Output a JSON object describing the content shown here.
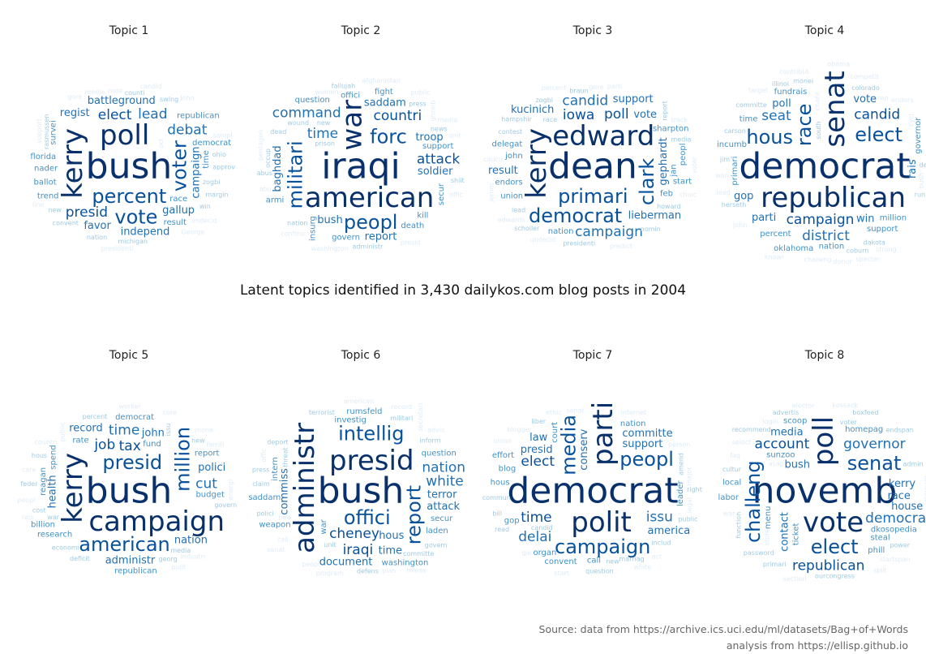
{
  "title": "Latent topics identified in 3,430 dailykos.com blog posts in 2004",
  "source": {
    "line1": "Source: data from https://archive.ics.uci.edu/ml/datasets/Bag+of+Words",
    "line2": "analysis from https://ellisp.github.io"
  },
  "colors": {
    "darkest": "#08306b",
    "dark": "#08519c",
    "medium": "#2171b5",
    "light": "#4292c6",
    "lighter": "#9ecae1",
    "faint": "#deebf7"
  },
  "chart_data": [
    {
      "type": "wordcloud",
      "title": "Topic 1",
      "words": [
        "bush",
        "kerry",
        "poll",
        "voter",
        "percent",
        "vote",
        "elect",
        "presid",
        "debat",
        "lead",
        "campaign",
        "battleground",
        "gallup",
        "independ",
        "regist",
        "favor",
        "florida",
        "time",
        "democrat",
        "race",
        "nader",
        "result",
        "republican",
        "ballot",
        "survei",
        "trend",
        "zogbi",
        "counti",
        "approv",
        "margin",
        "michigan",
        "rasmussen",
        "ohio",
        "win",
        "nation",
        "convent",
        "swing",
        "new",
        "support",
        "note",
        "media",
        "sampl",
        "undecid",
        "candid",
        "line",
        "oct",
        "George",
        "gore",
        "John",
        "presidenti"
      ]
    },
    {
      "type": "wordcloud",
      "title": "Topic 2",
      "words": [
        "iraqi",
        "war",
        "american",
        "militari",
        "forc",
        "peopl",
        "countri",
        "attack",
        "time",
        "command",
        "baghdad",
        "soldier",
        "troop",
        "bush",
        "saddam",
        "report",
        "support",
        "secur",
        "kill",
        "offici",
        "govern",
        "death",
        "question",
        "armi",
        "insurg",
        "fight",
        "prison",
        "new",
        "wound",
        "news",
        "dead",
        "occup",
        "nation",
        "abus",
        "press",
        "shiit",
        "administr",
        "fallujah",
        "ghraib",
        "abu",
        "women",
        "washington",
        "presid",
        "continu",
        "unit",
        "pentagon",
        "afghanistan",
        "offic",
        "media",
        "public"
      ]
    },
    {
      "type": "wordcloud",
      "title": "Topic 3",
      "words": [
        "dean",
        "kerry",
        "edward",
        "clark",
        "primari",
        "democrat",
        "iowa",
        "poll",
        "candid",
        "campaign",
        "gephardt",
        "lieberman",
        "kucinich",
        "support",
        "result",
        "vote",
        "john",
        "jan",
        "feb",
        "sharpton",
        "endors",
        "nation",
        "delegat",
        "union",
        "peopl",
        "start",
        "hampshir",
        "contest",
        "race",
        "howard",
        "lead",
        "report",
        "media",
        "zogbi",
        "braun",
        "nomin",
        "presidenti",
        "schoiler",
        "voter",
        "caucu",
        "choic",
        "gore",
        "parti",
        "predict",
        "track",
        "jerom",
        "undecid",
        "edwards",
        "percent"
      ]
    },
    {
      "type": "wordcloud",
      "title": "Topic 4",
      "words": [
        "democrat",
        "senat",
        "republican",
        "race",
        "elect",
        "hous",
        "campaign",
        "candid",
        "district",
        "seat",
        "rais",
        "win",
        "parti",
        "gop",
        "poll",
        "vote",
        "million",
        "primari",
        "incumb",
        "support",
        "fundrais",
        "percent",
        "nation",
        "time",
        "governor",
        "oklahoma",
        "herseth",
        "committe",
        "colorado",
        "carson",
        "jim",
        "south",
        "dakota",
        "monei",
        "dem",
        "run",
        "coburn",
        "illinoi",
        "chanc",
        "won",
        "challeng",
        "endors",
        "competit",
        "contribut",
        "target",
        "bush",
        "specter",
        "strong",
        "rep",
        "donor",
        "knowl",
        "lead",
        "cycl",
        "John",
        "obama"
      ]
    },
    {
      "type": "wordcloud",
      "title": "Topic 5",
      "words": [
        "bush",
        "kerry",
        "campaign",
        "million",
        "presid",
        "american",
        "tax",
        "job",
        "time",
        "cut",
        "health",
        "polici",
        "john",
        "nation",
        "administr",
        "record",
        "budget",
        "reagan",
        "fund",
        "rate",
        "research",
        "democrat",
        "report",
        "billion",
        "spend",
        "republican",
        "economi",
        "govern",
        "media",
        "war",
        "cost",
        "issu",
        "deficit",
        "georg",
        "feder",
        "percent",
        "new",
        "hous",
        "public",
        "peopl",
        "countri",
        "famili",
        "industri",
        "worker",
        "care",
        "energi",
        "rais",
        "core",
        "mone",
        "polit"
      ]
    },
    {
      "type": "wordcloud",
      "title": "Topic 6",
      "words": [
        "bush",
        "administr",
        "presid",
        "report",
        "intellig",
        "offici",
        "cheney",
        "iraqi",
        "white",
        "nation",
        "commiss",
        "terror",
        "hous",
        "attack",
        "time",
        "document",
        "investig",
        "war",
        "secur",
        "question",
        "weapon",
        "saddam",
        "laden",
        "rumsfeld",
        "intern",
        "washington",
        "committe",
        "militari",
        "inform",
        "polici",
        "govern",
        "threat",
        "defens",
        "unit",
        "deport",
        "terrorist",
        "claim",
        "press",
        "secretari",
        "program",
        "american",
        "new",
        "call",
        "plan",
        "peopl",
        "offic",
        "advis",
        "senat",
        "record",
        "releas"
      ]
    },
    {
      "type": "wordcloud",
      "title": "Topic 7",
      "words": [
        "democrat",
        "parti",
        "polit",
        "media",
        "peopl",
        "campaign",
        "time",
        "elect",
        "issu",
        "delai",
        "conserv",
        "presid",
        "support",
        "committe",
        "america",
        "law",
        "call",
        "court",
        "nation",
        "convent",
        "blog",
        "gop",
        "organ",
        "hous",
        "leader",
        "effort",
        "candid",
        "includ",
        "marriag",
        "commun",
        "question",
        "amend",
        "new",
        "bill",
        "public",
        "right",
        "read",
        "liber",
        "major",
        "senat",
        "person",
        "blogger",
        "internet",
        "ethic",
        "white",
        "legal",
        "start",
        "gai",
        "union",
        "act"
      ]
    },
    {
      "type": "wordcloud",
      "title": "Topic 8",
      "words": [
        "novemb",
        "poll",
        "vote",
        "challeng",
        "senat",
        "elect",
        "account",
        "republican",
        "governor",
        "democrat",
        "contact",
        "bush",
        "kerry",
        "race",
        "media",
        "house",
        "sunzoo",
        "ticket",
        "dkosopedia",
        "homepag",
        "steal",
        "phill",
        "local",
        "scoop",
        "menu",
        "labor",
        "voter",
        "cultur",
        "password",
        "recommend",
        "admin",
        "function",
        "power",
        "advertis",
        "primari",
        "boxfeed",
        "endspan",
        "ourcongress",
        "usernam",
        "select",
        "elector",
        "kossack",
        "startspan",
        "login",
        "section",
        "store",
        "asap",
        "split",
        "war",
        "faq"
      ]
    }
  ]
}
